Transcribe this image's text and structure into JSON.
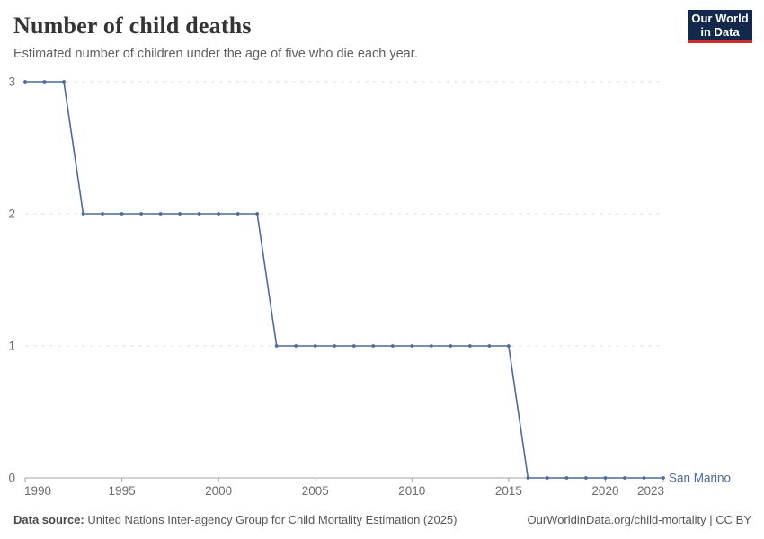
{
  "header": {
    "title": "Number of child deaths",
    "subtitle": "Estimated number of children under the age of five who die each year."
  },
  "logo": {
    "line1": "Our World",
    "line2": "in Data",
    "bg_color": "#12294b",
    "accent_color": "#cf2d29"
  },
  "chart_data": {
    "type": "line",
    "title": "Number of child deaths",
    "xlabel": "",
    "ylabel": "",
    "xlim": [
      1990,
      2023
    ],
    "ylim": [
      0,
      3
    ],
    "x_ticks": [
      1990,
      1995,
      2000,
      2005,
      2010,
      2015,
      2020,
      2023
    ],
    "y_ticks": [
      0,
      1,
      2,
      3
    ],
    "grid": "horizontal-dashed",
    "legend_position": "right-of-line-end",
    "series": [
      {
        "name": "San Marino",
        "color": "#4c6a9c",
        "x": [
          1990,
          1991,
          1992,
          1993,
          1994,
          1995,
          1996,
          1997,
          1998,
          1999,
          2000,
          2001,
          2002,
          2003,
          2004,
          2005,
          2006,
          2007,
          2008,
          2009,
          2010,
          2011,
          2012,
          2013,
          2014,
          2015,
          2016,
          2017,
          2018,
          2019,
          2020,
          2021,
          2022,
          2023
        ],
        "values": [
          3,
          3,
          3,
          2,
          2,
          2,
          2,
          2,
          2,
          2,
          2,
          2,
          2,
          1,
          1,
          1,
          1,
          1,
          1,
          1,
          1,
          1,
          1,
          1,
          1,
          1,
          0,
          0,
          0,
          0,
          0,
          0,
          0,
          0
        ]
      }
    ]
  },
  "footer": {
    "source_label": "Data source:",
    "source_text": " United Nations Inter-agency Group for Child Mortality Estimation (2025)",
    "rights": "OurWorldinData.org/child-mortality | CC BY"
  },
  "colors": {
    "axis": "#a3a3a3",
    "grid": "#dfdfdf",
    "tick_label": "#6b6b6b"
  }
}
